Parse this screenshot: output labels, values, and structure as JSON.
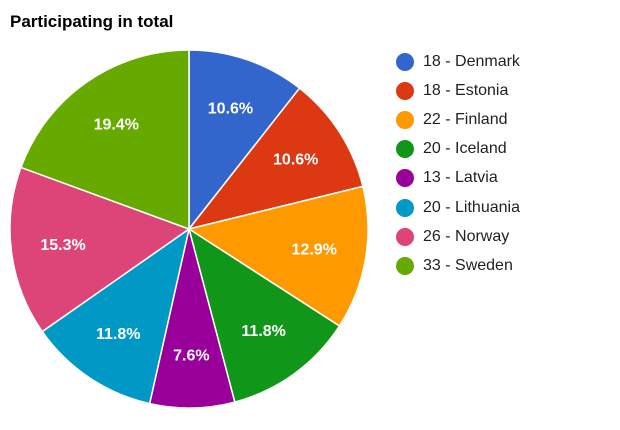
{
  "chart_data": {
    "type": "pie",
    "title": "Participating in total",
    "legend": "right",
    "slices": [
      {
        "label": "18 - Denmark",
        "value": 18,
        "percent_label": "10.6%",
        "color": "#3366cc"
      },
      {
        "label": "18 - Estonia",
        "value": 18,
        "percent_label": "10.6%",
        "color": "#dc3912"
      },
      {
        "label": "22 - Finland",
        "value": 22,
        "percent_label": "12.9%",
        "color": "#ff9900"
      },
      {
        "label": "20 - Iceland",
        "value": 20,
        "percent_label": "11.8%",
        "color": "#109618"
      },
      {
        "label": "13 - Latvia",
        "value": 13,
        "percent_label": "7.6%",
        "color": "#990099"
      },
      {
        "label": "20 - Lithuania",
        "value": 20,
        "percent_label": "11.8%",
        "color": "#0099c6"
      },
      {
        "label": "26 - Norway",
        "value": 26,
        "percent_label": "15.3%",
        "color": "#dd4477"
      },
      {
        "label": "33 - Sweden",
        "value": 33,
        "percent_label": "19.4%",
        "color": "#66aa00"
      }
    ]
  }
}
